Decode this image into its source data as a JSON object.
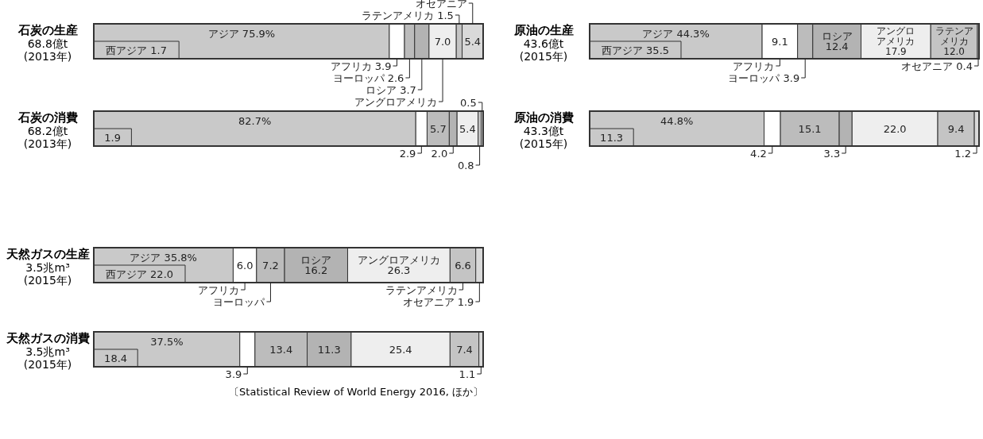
{
  "chart_data": [
    {
      "type": "bar",
      "orientation": "horizontal",
      "stacked": true,
      "title": "石炭の生産",
      "subtitle": "68.8億t\n(2013年)",
      "categories": [
        null
      ],
      "xlim": [
        0,
        100
      ],
      "tick_labels": false,
      "annotations": [
        "西アジア 1.7"
      ],
      "series": [
        {
          "name": "アジア",
          "color": "#c9c9c9",
          "values": [
            75.9
          ],
          "value_labels": [
            "75.9%"
          ]
        },
        {
          "name": "アフリカ",
          "color": "#ffffff",
          "values": [
            3.9
          ],
          "value_labels": [
            "3.9"
          ]
        },
        {
          "name": "ヨーロッパ",
          "color": "#bcbcbc",
          "values": [
            2.6
          ],
          "value_labels": [
            "2.6"
          ]
        },
        {
          "name": "ロシア",
          "color": "#b3b3b3",
          "values": [
            3.7
          ],
          "value_labels": [
            "3.7"
          ]
        },
        {
          "name": "アングロアメリカ",
          "color": "#eeeeee",
          "values": [
            7.0
          ],
          "value_labels": [
            "7.0"
          ]
        },
        {
          "name": "ラテンアメリカ",
          "color": "#c4c4c4",
          "values": [
            1.5
          ],
          "value_labels": [
            "1.5"
          ]
        },
        {
          "name": "オセアニア",
          "color": "#d9d9d9",
          "values": [
            5.4
          ],
          "value_labels": [
            "5.4"
          ]
        }
      ]
    },
    {
      "type": "bar",
      "orientation": "horizontal",
      "stacked": true,
      "title": "原油の生産",
      "subtitle": "43.6億t\n(2015年)",
      "categories": [
        null
      ],
      "xlim": [
        0,
        100
      ],
      "tick_labels": false,
      "annotations": [
        "西アジア 35.5"
      ],
      "series": [
        {
          "name": "アジア",
          "color": "#c9c9c9",
          "values": [
            44.3
          ],
          "value_labels": [
            "44.3%"
          ]
        },
        {
          "name": "アフリカ",
          "color": "#ffffff",
          "values": [
            9.1
          ],
          "value_labels": [
            "9.1"
          ]
        },
        {
          "name": "ヨーロッパ",
          "color": "#bcbcbc",
          "values": [
            3.9
          ],
          "value_labels": [
            "3.9"
          ]
        },
        {
          "name": "ロシア",
          "color": "#b3b3b3",
          "values": [
            12.4
          ],
          "value_labels": [
            "12.4"
          ]
        },
        {
          "name": "アングロアメリカ",
          "color": "#eeeeee",
          "values": [
            17.9
          ],
          "value_labels": [
            "17.9"
          ]
        },
        {
          "name": "ラテンアメリカ",
          "color": "#c4c4c4",
          "values": [
            12.0
          ],
          "value_labels": [
            "12.0"
          ]
        },
        {
          "name": "オセアニア",
          "color": "#d9d9d9",
          "values": [
            0.4
          ],
          "value_labels": [
            "0.4"
          ]
        }
      ]
    },
    {
      "type": "bar",
      "orientation": "horizontal",
      "stacked": true,
      "title": "石炭の消費",
      "subtitle": "68.2億t\n(2013年)",
      "categories": [
        null
      ],
      "xlim": [
        0,
        100
      ],
      "tick_labels": false,
      "annotations": [
        "1.9"
      ],
      "series": [
        {
          "color": "#c9c9c9",
          "values": [
            82.7
          ],
          "value_labels": [
            "82.7%"
          ]
        },
        {
          "color": "#ffffff",
          "values": [
            2.9
          ],
          "value_labels": [
            "2.9"
          ]
        },
        {
          "color": "#bcbcbc",
          "values": [
            5.7
          ],
          "value_labels": [
            "5.7"
          ]
        },
        {
          "color": "#b3b3b3",
          "values": [
            2.0
          ],
          "value_labels": [
            "2.0"
          ]
        },
        {
          "color": "#eeeeee",
          "values": [
            5.4
          ],
          "value_labels": [
            "5.4"
          ]
        },
        {
          "color": "#c4c4c4",
          "values": [
            0.8
          ],
          "value_labels": [
            "0.8"
          ]
        },
        {
          "color": "#d9d9d9",
          "values": [
            0.5
          ],
          "value_labels": [
            "0.5"
          ]
        }
      ]
    },
    {
      "type": "bar",
      "orientation": "horizontal",
      "stacked": true,
      "title": "原油の消費",
      "subtitle": "43.3億t\n(2015年)",
      "categories": [
        null
      ],
      "xlim": [
        0,
        100
      ],
      "tick_labels": false,
      "annotations": [
        "11.3"
      ],
      "series": [
        {
          "color": "#c9c9c9",
          "values": [
            44.8
          ],
          "value_labels": [
            "44.8%"
          ]
        },
        {
          "color": "#ffffff",
          "values": [
            4.2
          ],
          "value_labels": [
            "4.2"
          ]
        },
        {
          "color": "#bcbcbc",
          "values": [
            15.1
          ],
          "value_labels": [
            "15.1"
          ]
        },
        {
          "color": "#b3b3b3",
          "values": [
            3.3
          ],
          "value_labels": [
            "3.3"
          ]
        },
        {
          "color": "#eeeeee",
          "values": [
            22.0
          ],
          "value_labels": [
            "22.0"
          ]
        },
        {
          "color": "#c4c4c4",
          "values": [
            9.4
          ],
          "value_labels": [
            "9.4"
          ]
        },
        {
          "color": "#d9d9d9",
          "values": [
            1.2
          ],
          "value_labels": [
            "1.2"
          ]
        }
      ]
    },
    {
      "type": "bar",
      "orientation": "horizontal",
      "stacked": true,
      "title": "天然ガスの生産",
      "subtitle": "3.5兆m³\n(2015年)",
      "categories": [
        null
      ],
      "xlim": [
        0,
        100
      ],
      "tick_labels": false,
      "annotations": [
        "西アジア 22.0"
      ],
      "series": [
        {
          "name": "アジア",
          "color": "#c9c9c9",
          "values": [
            35.8
          ],
          "value_labels": [
            "35.8%"
          ]
        },
        {
          "name": "アフリカ",
          "color": "#ffffff",
          "values": [
            6.0
          ],
          "value_labels": [
            "6.0"
          ]
        },
        {
          "name": "ヨーロッパ",
          "color": "#bcbcbc",
          "values": [
            7.2
          ],
          "value_labels": [
            "7.2"
          ]
        },
        {
          "name": "ロシア",
          "color": "#b3b3b3",
          "values": [
            16.2
          ],
          "value_labels": [
            "16.2"
          ]
        },
        {
          "name": "アングロアメリカ",
          "color": "#eeeeee",
          "values": [
            26.3
          ],
          "value_labels": [
            "26.3"
          ]
        },
        {
          "name": "ラテンアメリカ",
          "color": "#c4c4c4",
          "values": [
            6.6
          ],
          "value_labels": [
            "6.6"
          ]
        },
        {
          "name": "オセアニア",
          "color": "#d9d9d9",
          "values": [
            1.9
          ],
          "value_labels": [
            "1.9"
          ]
        }
      ]
    },
    {
      "type": "bar",
      "orientation": "horizontal",
      "stacked": true,
      "title": "天然ガスの消費",
      "subtitle": "3.5兆m³\n(2015年)",
      "categories": [
        null
      ],
      "xlim": [
        0,
        100
      ],
      "tick_labels": false,
      "annotations": [
        "18.4",
        "〔Statistical Review of World Energy 2016, ほか〕"
      ],
      "series": [
        {
          "color": "#c9c9c9",
          "values": [
            37.5
          ],
          "value_labels": [
            "37.5%"
          ]
        },
        {
          "color": "#ffffff",
          "values": [
            3.9
          ],
          "value_labels": [
            "3.9"
          ]
        },
        {
          "color": "#bcbcbc",
          "values": [
            13.4
          ],
          "value_labels": [
            "13.4"
          ]
        },
        {
          "color": "#b3b3b3",
          "values": [
            11.3
          ],
          "value_labels": [
            "11.3"
          ]
        },
        {
          "color": "#eeeeee",
          "values": [
            25.4
          ],
          "value_labels": [
            "25.4"
          ]
        },
        {
          "color": "#c4c4c4",
          "values": [
            7.4
          ],
          "value_labels": [
            "7.4"
          ]
        },
        {
          "color": "#d9d9d9",
          "values": [
            1.1
          ],
          "value_labels": [
            "1.1"
          ]
        }
      ]
    }
  ]
}
